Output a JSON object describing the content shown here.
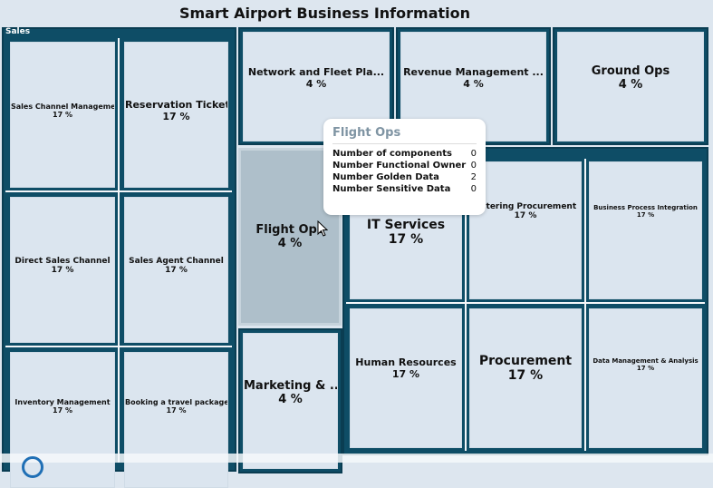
{
  "title": "Smart Airport Business Information",
  "sales_group": {
    "label": "Sales",
    "tiles": [
      {
        "name": "Sales Channel Management",
        "pct": "17 %"
      },
      {
        "name": "Reservation Ticket",
        "pct": "17 %"
      },
      {
        "name": "Direct Sales Channel",
        "pct": "17 %"
      },
      {
        "name": "Sales Agent Channel",
        "pct": "17 %"
      },
      {
        "name": "Inventory Management",
        "pct": "17 %"
      },
      {
        "name": "Booking a travel package",
        "pct": "17 %"
      }
    ]
  },
  "top_tiles": [
    {
      "name": "Network and Fleet Pla...",
      "pct": "4 %"
    },
    {
      "name": "Revenue Management ...",
      "pct": "4 %"
    },
    {
      "name": "Ground Ops",
      "pct": "4 %"
    }
  ],
  "flight_ops": {
    "name": "Flight Ops",
    "pct": "4 %"
  },
  "marketing": {
    "name": "Marketing & ...",
    "pct": "4 %"
  },
  "it_group": {
    "tiles": [
      {
        "name": "IT Services",
        "pct": "17 %"
      },
      {
        "name": "Catering Procurement",
        "pct": "17 %"
      },
      {
        "name": "Business Process Integration",
        "pct": "17 %"
      },
      {
        "name": "Human Resources",
        "pct": "17 %"
      },
      {
        "name": "Procurement",
        "pct": "17 %"
      },
      {
        "name": "Data Management & Analysis",
        "pct": "17 %"
      }
    ]
  },
  "tooltip": {
    "title": "Flight Ops",
    "rows": [
      {
        "label": "Number of components",
        "value": "0"
      },
      {
        "label": "Number Functional Owner",
        "value": "0"
      },
      {
        "label": "Number Golden Data",
        "value": "2"
      },
      {
        "label": "Number Sensitive Data",
        "value": "0"
      }
    ]
  },
  "colors": {
    "group": "#0e4d66",
    "tile": "#dbe5ef",
    "highlight": "#aebfca"
  }
}
